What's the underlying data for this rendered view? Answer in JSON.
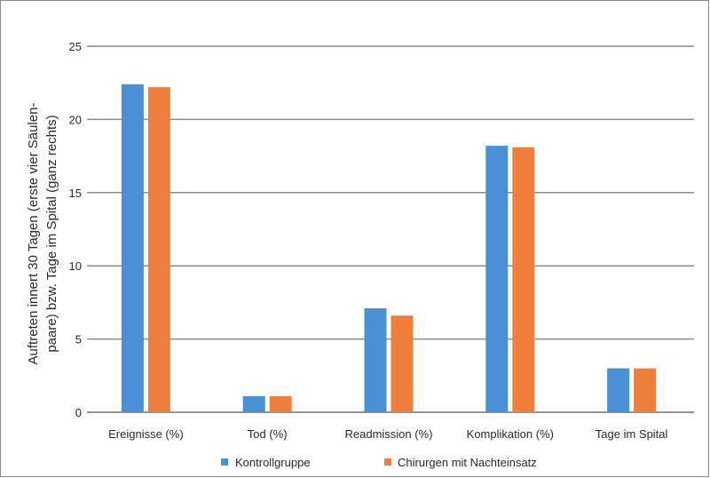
{
  "chart_data": {
    "type": "bar",
    "categories": [
      "Ereignisse (%)",
      "Tod (%)",
      "Readmission (%)",
      "Komplikation (%)",
      "Tage im Spital"
    ],
    "series": [
      {
        "name": "Kontrollgruppe",
        "color": "#4a90d6",
        "values": [
          22.4,
          1.1,
          7.1,
          18.2,
          3.0
        ]
      },
      {
        "name": "Chirurgen mit Nachteinsatz",
        "color": "#f07f3c",
        "values": [
          22.2,
          1.1,
          6.6,
          18.1,
          3.0
        ]
      }
    ],
    "ylabel_lines": [
      "Auftreten innert 30 Tagen (erste vier Säulen-",
      "paare) bzw. Tage im Spital (ganz rechts)"
    ],
    "ylim": [
      0,
      25
    ],
    "yticks": [
      "0",
      "5",
      "10",
      "15",
      "20",
      "25"
    ],
    "grid": true,
    "legend_position": "bottom"
  }
}
